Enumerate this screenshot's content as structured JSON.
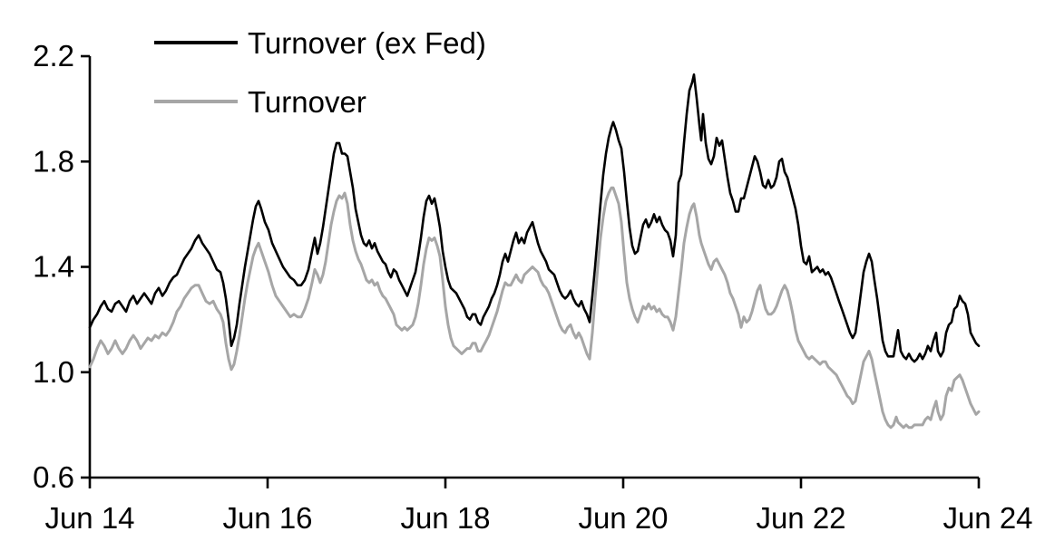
{
  "chart_data": {
    "type": "line",
    "title": "",
    "xlabel": "",
    "ylabel": "",
    "grid": false,
    "legend_position": "top-left-inside",
    "x_axis": {
      "unit": "years since Jun 2014",
      "range": [
        0,
        10
      ],
      "tick_values": [
        0,
        2,
        4,
        6,
        8,
        10
      ],
      "tick_labels": [
        "Jun 14",
        "Jun 16",
        "Jun 18",
        "Jun 20",
        "Jun 22",
        "Jun 24"
      ]
    },
    "y_axis": {
      "range": [
        0.6,
        2.2
      ],
      "tick_values": [
        0.6,
        1.0,
        1.4,
        1.8,
        2.2
      ],
      "tick_labels": [
        "0.6",
        "1.0",
        "1.4",
        "1.8",
        "2.2"
      ]
    },
    "t": [
      0.0,
      0.041,
      0.082,
      0.122,
      0.163,
      0.204,
      0.245,
      0.286,
      0.327,
      0.367,
      0.408,
      0.449,
      0.49,
      0.531,
      0.571,
      0.612,
      0.653,
      0.694,
      0.735,
      0.776,
      0.816,
      0.857,
      0.898,
      0.939,
      0.98,
      1.02,
      1.061,
      1.102,
      1.143,
      1.184,
      1.224,
      1.265,
      1.306,
      1.347,
      1.388,
      1.429,
      1.469,
      1.5,
      1.531,
      1.561,
      1.592,
      1.622,
      1.653,
      1.684,
      1.714,
      1.745,
      1.776,
      1.806,
      1.837,
      1.867,
      1.898,
      1.929,
      1.969,
      2.01,
      2.051,
      2.092,
      2.133,
      2.173,
      2.214,
      2.255,
      2.296,
      2.337,
      2.378,
      2.418,
      2.459,
      2.5,
      2.531,
      2.561,
      2.592,
      2.622,
      2.653,
      2.684,
      2.714,
      2.745,
      2.776,
      2.806,
      2.837,
      2.867,
      2.898,
      2.929,
      2.959,
      2.99,
      3.02,
      3.051,
      3.082,
      3.112,
      3.143,
      3.173,
      3.204,
      3.235,
      3.265,
      3.296,
      3.327,
      3.357,
      3.388,
      3.418,
      3.449,
      3.48,
      3.51,
      3.541,
      3.571,
      3.602,
      3.633,
      3.663,
      3.694,
      3.724,
      3.755,
      3.786,
      3.816,
      3.847,
      3.878,
      3.908,
      3.939,
      3.969,
      4.0,
      4.031,
      4.061,
      4.092,
      4.122,
      4.153,
      4.184,
      4.214,
      4.245,
      4.276,
      4.306,
      4.337,
      4.367,
      4.398,
      4.428,
      4.459,
      4.49,
      4.52,
      4.551,
      4.582,
      4.612,
      4.643,
      4.673,
      4.704,
      4.735,
      4.765,
      4.796,
      4.826,
      4.857,
      4.888,
      4.918,
      4.949,
      4.98,
      5.01,
      5.041,
      5.071,
      5.102,
      5.133,
      5.163,
      5.194,
      5.224,
      5.255,
      5.286,
      5.316,
      5.347,
      5.377,
      5.408,
      5.439,
      5.469,
      5.5,
      5.531,
      5.561,
      5.592,
      5.622,
      5.653,
      5.684,
      5.714,
      5.745,
      5.776,
      5.806,
      5.837,
      5.867,
      5.888,
      5.918,
      5.949,
      5.98,
      6.01,
      6.041,
      6.071,
      6.102,
      6.133,
      6.163,
      6.194,
      6.224,
      6.255,
      6.286,
      6.316,
      6.347,
      6.378,
      6.408,
      6.439,
      6.469,
      6.5,
      6.531,
      6.561,
      6.592,
      6.622,
      6.653,
      6.684,
      6.714,
      6.745,
      6.776,
      6.796,
      6.827,
      6.857,
      6.878,
      6.898,
      6.929,
      6.959,
      6.99,
      7.02,
      7.051,
      7.082,
      7.112,
      7.143,
      7.173,
      7.204,
      7.235,
      7.265,
      7.296,
      7.327,
      7.357,
      7.388,
      7.418,
      7.449,
      7.48,
      7.51,
      7.541,
      7.571,
      7.602,
      7.633,
      7.663,
      7.694,
      7.724,
      7.755,
      7.786,
      7.816,
      7.847,
      7.878,
      7.908,
      7.939,
      7.969,
      8.0,
      8.031,
      8.061,
      8.092,
      8.122,
      8.153,
      8.184,
      8.214,
      8.245,
      8.276,
      8.306,
      8.337,
      8.367,
      8.398,
      8.428,
      8.459,
      8.49,
      8.52,
      8.551,
      8.582,
      8.612,
      8.643,
      8.673,
      8.704,
      8.735,
      8.765,
      8.796,
      8.826,
      8.857,
      8.888,
      8.918,
      8.949,
      8.98,
      9.01,
      9.041,
      9.071,
      9.092,
      9.122,
      9.153,
      9.184,
      9.214,
      9.245,
      9.276,
      9.306,
      9.337,
      9.367,
      9.398,
      9.428,
      9.459,
      9.49,
      9.52,
      9.541,
      9.571,
      9.602,
      9.633,
      9.663,
      9.694,
      9.724,
      9.755,
      9.786,
      9.816,
      9.847,
      9.878,
      9.908,
      9.939,
      9.969,
      10.0
    ],
    "series": [
      {
        "name": "Turnover (ex Fed)",
        "color": "#000000",
        "line_width": 2.6,
        "values": [
          1.17,
          1.2,
          1.22,
          1.25,
          1.27,
          1.24,
          1.23,
          1.26,
          1.27,
          1.25,
          1.23,
          1.27,
          1.29,
          1.26,
          1.28,
          1.3,
          1.28,
          1.26,
          1.3,
          1.32,
          1.29,
          1.31,
          1.34,
          1.36,
          1.37,
          1.4,
          1.43,
          1.45,
          1.47,
          1.5,
          1.52,
          1.49,
          1.47,
          1.45,
          1.42,
          1.39,
          1.38,
          1.34,
          1.28,
          1.2,
          1.1,
          1.13,
          1.18,
          1.26,
          1.33,
          1.4,
          1.46,
          1.52,
          1.58,
          1.63,
          1.65,
          1.62,
          1.57,
          1.54,
          1.49,
          1.46,
          1.43,
          1.4,
          1.38,
          1.36,
          1.35,
          1.33,
          1.33,
          1.35,
          1.39,
          1.46,
          1.51,
          1.45,
          1.49,
          1.55,
          1.62,
          1.69,
          1.76,
          1.83,
          1.87,
          1.87,
          1.83,
          1.83,
          1.82,
          1.76,
          1.7,
          1.62,
          1.57,
          1.52,
          1.49,
          1.48,
          1.5,
          1.47,
          1.49,
          1.46,
          1.44,
          1.42,
          1.41,
          1.38,
          1.36,
          1.39,
          1.38,
          1.35,
          1.33,
          1.31,
          1.29,
          1.32,
          1.35,
          1.38,
          1.44,
          1.51,
          1.59,
          1.65,
          1.67,
          1.64,
          1.66,
          1.61,
          1.55,
          1.46,
          1.4,
          1.35,
          1.32,
          1.31,
          1.3,
          1.28,
          1.26,
          1.24,
          1.21,
          1.2,
          1.22,
          1.22,
          1.19,
          1.18,
          1.21,
          1.23,
          1.25,
          1.28,
          1.3,
          1.33,
          1.37,
          1.42,
          1.45,
          1.42,
          1.46,
          1.5,
          1.53,
          1.49,
          1.51,
          1.49,
          1.53,
          1.55,
          1.57,
          1.53,
          1.49,
          1.46,
          1.44,
          1.42,
          1.39,
          1.38,
          1.37,
          1.34,
          1.31,
          1.29,
          1.28,
          1.29,
          1.31,
          1.28,
          1.26,
          1.25,
          1.27,
          1.24,
          1.22,
          1.19,
          1.29,
          1.4,
          1.52,
          1.64,
          1.75,
          1.83,
          1.89,
          1.93,
          1.95,
          1.92,
          1.88,
          1.85,
          1.76,
          1.65,
          1.55,
          1.48,
          1.45,
          1.46,
          1.51,
          1.56,
          1.58,
          1.55,
          1.57,
          1.6,
          1.57,
          1.59,
          1.56,
          1.54,
          1.53,
          1.5,
          1.44,
          1.52,
          1.72,
          1.75,
          1.87,
          1.98,
          2.07,
          2.1,
          2.13,
          2.04,
          1.94,
          1.88,
          1.98,
          1.87,
          1.81,
          1.79,
          1.82,
          1.89,
          1.86,
          1.88,
          1.81,
          1.74,
          1.68,
          1.65,
          1.61,
          1.61,
          1.66,
          1.66,
          1.7,
          1.74,
          1.78,
          1.82,
          1.8,
          1.76,
          1.71,
          1.7,
          1.73,
          1.7,
          1.71,
          1.74,
          1.8,
          1.81,
          1.76,
          1.74,
          1.7,
          1.66,
          1.62,
          1.56,
          1.48,
          1.42,
          1.41,
          1.44,
          1.38,
          1.39,
          1.4,
          1.38,
          1.39,
          1.37,
          1.38,
          1.36,
          1.33,
          1.3,
          1.27,
          1.24,
          1.21,
          1.18,
          1.15,
          1.13,
          1.15,
          1.22,
          1.3,
          1.38,
          1.42,
          1.45,
          1.42,
          1.35,
          1.28,
          1.2,
          1.12,
          1.08,
          1.06,
          1.06,
          1.06,
          1.12,
          1.16,
          1.08,
          1.06,
          1.05,
          1.07,
          1.05,
          1.04,
          1.05,
          1.07,
          1.05,
          1.07,
          1.1,
          1.08,
          1.12,
          1.15,
          1.08,
          1.06,
          1.08,
          1.15,
          1.18,
          1.19,
          1.24,
          1.25,
          1.29,
          1.27,
          1.26,
          1.22,
          1.15,
          1.13,
          1.11,
          1.1
        ]
      },
      {
        "name": "Turnover",
        "color": "#a6a6a6",
        "line_width": 3.0,
        "values": [
          1.02,
          1.05,
          1.09,
          1.12,
          1.1,
          1.07,
          1.09,
          1.12,
          1.09,
          1.07,
          1.09,
          1.12,
          1.14,
          1.12,
          1.09,
          1.11,
          1.13,
          1.12,
          1.14,
          1.13,
          1.15,
          1.14,
          1.16,
          1.19,
          1.23,
          1.25,
          1.28,
          1.3,
          1.32,
          1.33,
          1.33,
          1.3,
          1.27,
          1.26,
          1.27,
          1.24,
          1.22,
          1.19,
          1.11,
          1.05,
          1.01,
          1.03,
          1.08,
          1.14,
          1.21,
          1.28,
          1.34,
          1.39,
          1.44,
          1.47,
          1.49,
          1.46,
          1.42,
          1.38,
          1.33,
          1.29,
          1.27,
          1.25,
          1.23,
          1.21,
          1.22,
          1.21,
          1.21,
          1.24,
          1.28,
          1.34,
          1.39,
          1.37,
          1.34,
          1.37,
          1.42,
          1.49,
          1.56,
          1.61,
          1.65,
          1.67,
          1.66,
          1.68,
          1.64,
          1.56,
          1.5,
          1.46,
          1.43,
          1.41,
          1.38,
          1.35,
          1.34,
          1.35,
          1.33,
          1.34,
          1.31,
          1.29,
          1.28,
          1.26,
          1.24,
          1.22,
          1.18,
          1.17,
          1.16,
          1.17,
          1.16,
          1.17,
          1.18,
          1.21,
          1.26,
          1.33,
          1.41,
          1.47,
          1.51,
          1.5,
          1.51,
          1.48,
          1.44,
          1.35,
          1.25,
          1.18,
          1.13,
          1.1,
          1.09,
          1.08,
          1.07,
          1.08,
          1.09,
          1.09,
          1.11,
          1.11,
          1.08,
          1.08,
          1.1,
          1.12,
          1.14,
          1.17,
          1.2,
          1.23,
          1.27,
          1.31,
          1.34,
          1.33,
          1.33,
          1.35,
          1.37,
          1.35,
          1.34,
          1.37,
          1.38,
          1.39,
          1.4,
          1.39,
          1.38,
          1.35,
          1.33,
          1.32,
          1.3,
          1.27,
          1.24,
          1.21,
          1.18,
          1.16,
          1.15,
          1.17,
          1.18,
          1.15,
          1.13,
          1.15,
          1.13,
          1.1,
          1.07,
          1.05,
          1.15,
          1.28,
          1.4,
          1.51,
          1.59,
          1.65,
          1.68,
          1.7,
          1.7,
          1.67,
          1.64,
          1.57,
          1.45,
          1.34,
          1.28,
          1.24,
          1.21,
          1.19,
          1.22,
          1.25,
          1.24,
          1.26,
          1.24,
          1.25,
          1.23,
          1.24,
          1.22,
          1.21,
          1.21,
          1.19,
          1.16,
          1.21,
          1.3,
          1.39,
          1.49,
          1.55,
          1.6,
          1.63,
          1.64,
          1.59,
          1.52,
          1.49,
          1.47,
          1.44,
          1.41,
          1.39,
          1.42,
          1.43,
          1.41,
          1.39,
          1.37,
          1.34,
          1.3,
          1.28,
          1.25,
          1.22,
          1.17,
          1.21,
          1.19,
          1.2,
          1.23,
          1.27,
          1.31,
          1.33,
          1.28,
          1.24,
          1.22,
          1.22,
          1.23,
          1.25,
          1.28,
          1.31,
          1.33,
          1.31,
          1.27,
          1.22,
          1.16,
          1.12,
          1.1,
          1.08,
          1.06,
          1.05,
          1.06,
          1.05,
          1.04,
          1.03,
          1.04,
          1.04,
          1.02,
          1.01,
          1.0,
          0.99,
          0.97,
          0.95,
          0.93,
          0.91,
          0.9,
          0.88,
          0.89,
          0.94,
          0.99,
          1.04,
          1.06,
          1.08,
          1.05,
          1.0,
          0.95,
          0.9,
          0.85,
          0.82,
          0.8,
          0.79,
          0.8,
          0.83,
          0.81,
          0.8,
          0.79,
          0.8,
          0.79,
          0.79,
          0.8,
          0.8,
          0.8,
          0.8,
          0.82,
          0.83,
          0.82,
          0.86,
          0.89,
          0.85,
          0.82,
          0.84,
          0.91,
          0.94,
          0.93,
          0.97,
          0.98,
          0.99,
          0.97,
          0.94,
          0.91,
          0.88,
          0.86,
          0.84,
          0.85
        ]
      }
    ]
  },
  "colors": {
    "background": "#ffffff",
    "axis": "#000000",
    "tick_text": "#000000"
  }
}
